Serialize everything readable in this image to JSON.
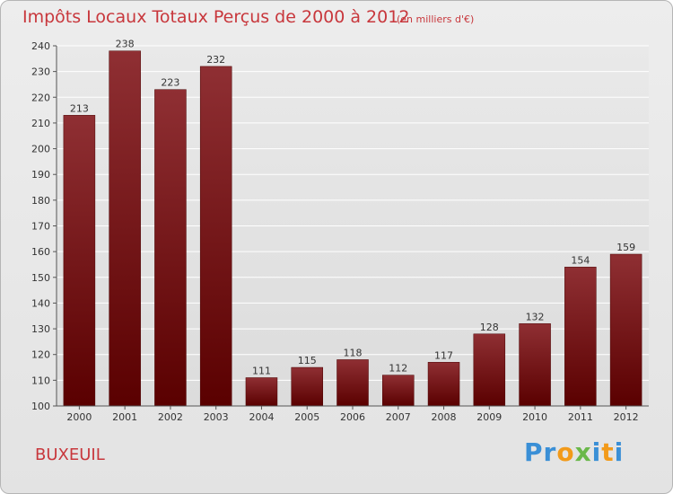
{
  "header": {
    "title": "Impôts Locaux Totaux Perçus de 2000 à 2012",
    "subtitle": "(en milliers d'€)"
  },
  "footer": {
    "town": "BUXEUIL",
    "logo_letters": [
      "P",
      "r",
      "o",
      "x",
      "i",
      "t",
      "i"
    ]
  },
  "colors": {
    "title": "#c8373c",
    "bar_top": "#8f2f33",
    "bar_bottom": "#5a0000",
    "logo": [
      "#3a8fd6",
      "#3a8fd6",
      "#f29a1a",
      "#6ab84a",
      "#3a8fd6",
      "#f29a1a",
      "#3a8fd6"
    ]
  },
  "chart_data": {
    "type": "bar",
    "title": "Impôts Locaux Totaux Perçus de 2000 à 2012",
    "xlabel": "",
    "ylabel": "",
    "categories": [
      "2000",
      "2001",
      "2002",
      "2003",
      "2004",
      "2005",
      "2006",
      "2007",
      "2008",
      "2009",
      "2010",
      "2011",
      "2012"
    ],
    "values": [
      213,
      238,
      223,
      232,
      111,
      115,
      118,
      112,
      117,
      128,
      132,
      154,
      159
    ],
    "ylim": [
      100,
      240
    ],
    "yticks": [
      100,
      110,
      120,
      130,
      140,
      150,
      160,
      170,
      180,
      190,
      200,
      210,
      220,
      230,
      240
    ],
    "grid": true
  }
}
